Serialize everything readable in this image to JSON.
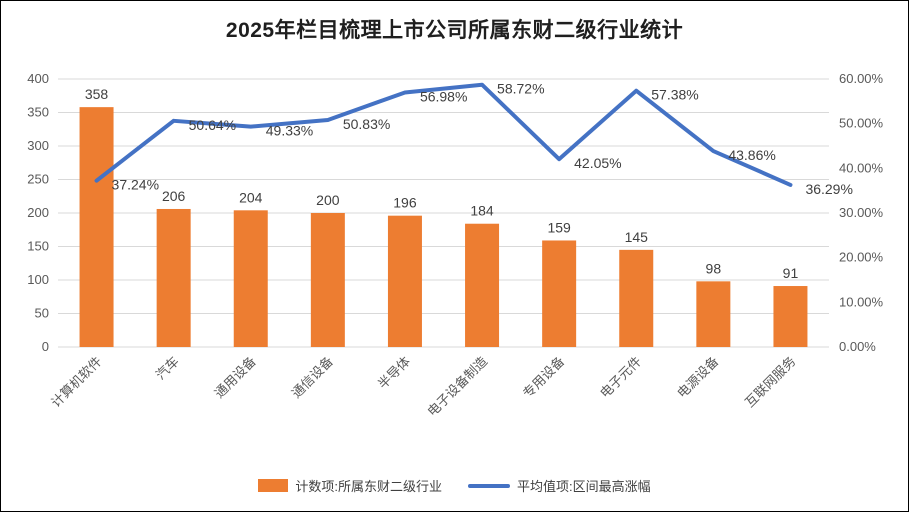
{
  "title": "2025年栏目梳理上市公司所属东财二级行业统计",
  "legend": [
    {
      "label": "计数项:所属东财二级行业",
      "marker": "bar",
      "color": "#ED7D31"
    },
    {
      "label": "平均值项:区间最高涨幅",
      "marker": "line",
      "color": "#4472C4"
    }
  ],
  "chart_data": {
    "type": "bar",
    "combo": "bar+line",
    "title": "2025年栏目梳理上市公司所属东财二级行业统计",
    "categories": [
      "计算机软件",
      "汽车",
      "通用设备",
      "通信设备",
      "半导体",
      "电子设备制造",
      "专用设备",
      "电子元件",
      "电源设备",
      "互联网服务"
    ],
    "series": [
      {
        "name": "计数项:所属东财二级行业",
        "type": "bar",
        "axis": "left",
        "color": "#ED7D31",
        "values": [
          358,
          206,
          204,
          200,
          196,
          184,
          159,
          145,
          98,
          91
        ],
        "labels": [
          "358",
          "206",
          "204",
          "200",
          "196",
          "184",
          "159",
          "145",
          "98",
          "91"
        ]
      },
      {
        "name": "平均值项:区间最高涨幅",
        "type": "line",
        "axis": "right",
        "color": "#4472C4",
        "values": [
          37.24,
          50.64,
          49.33,
          50.83,
          56.98,
          58.72,
          42.05,
          57.38,
          43.86,
          36.29
        ],
        "labels": [
          "37.24%",
          "50.64%",
          "49.33%",
          "50.83%",
          "56.98%",
          "58.72%",
          "42.05%",
          "57.38%",
          "43.86%",
          "36.29%"
        ]
      }
    ],
    "left_axis": {
      "min": 0,
      "max": 400,
      "step": 50,
      "ticks": [
        "0",
        "50",
        "100",
        "150",
        "200",
        "250",
        "300",
        "350",
        "400"
      ]
    },
    "right_axis": {
      "min": 0,
      "max": 60,
      "step": 10,
      "ticks": [
        "0.00%",
        "10.00%",
        "20.00%",
        "30.00%",
        "40.00%",
        "50.00%",
        "60.00%"
      ]
    },
    "grid": true,
    "legend_position": "bottom",
    "colors": {
      "grid": "#D9D9D9",
      "tick_text": "#595959",
      "data_label": "#404040"
    }
  }
}
